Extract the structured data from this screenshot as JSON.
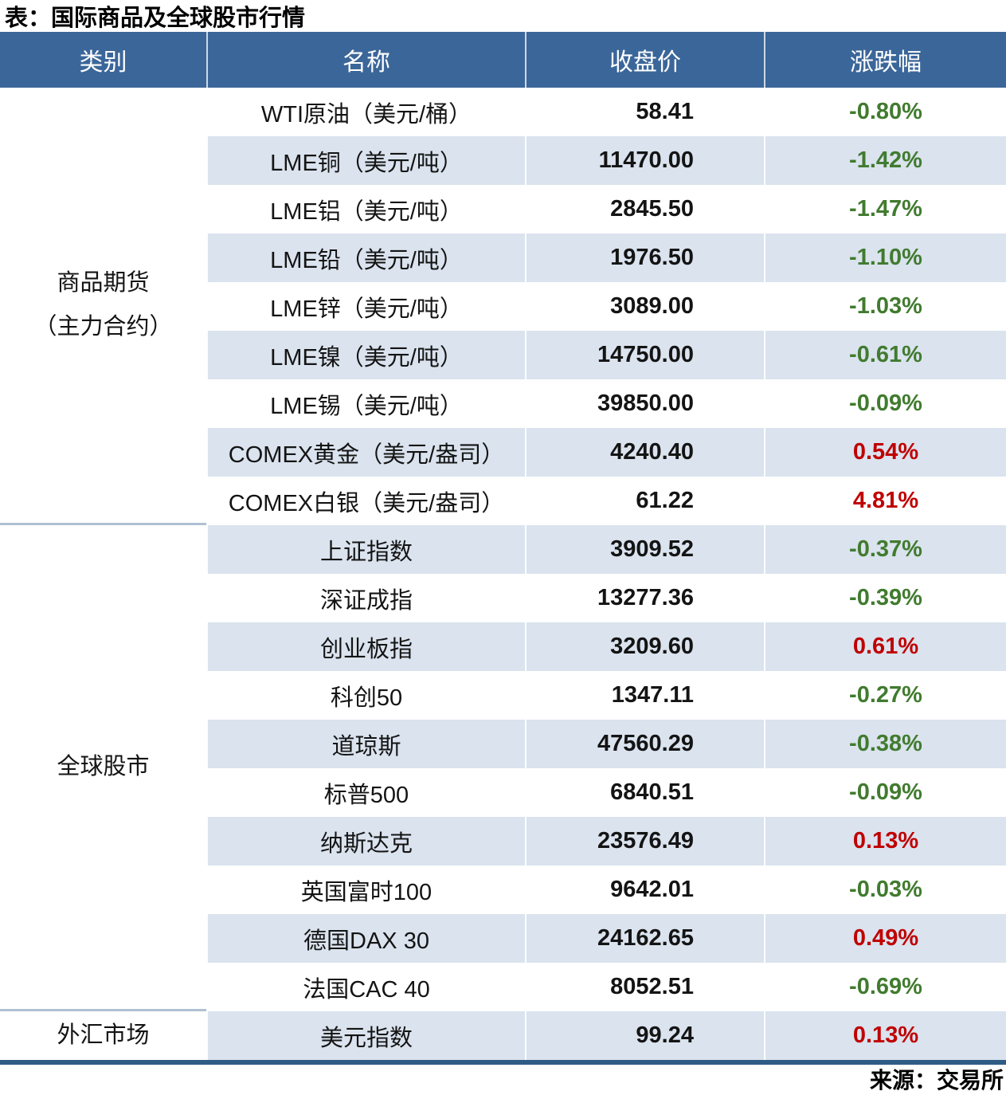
{
  "title": "表：国际商品及全球股市行情",
  "source": "来源：交易所",
  "colors": {
    "header_bg": "#3B6699",
    "stripe_row_bg": "#DAE3EE",
    "white_row_bg": "#FFFFFF",
    "gain_red": "#C00000",
    "loss_green": "#417B2F",
    "bottom_border": "#2E5C85",
    "section_divider": "#AFC0D2"
  },
  "table": {
    "headers": [
      "类别",
      "名称",
      "收盘价",
      "涨跌幅"
    ],
    "categories": [
      {
        "label": "商品期货\n（主力合约）",
        "row_count": 9
      },
      {
        "label": "全球股市",
        "row_count": 10
      },
      {
        "label": "外汇市场",
        "row_count": 1
      }
    ],
    "rows": [
      {
        "name": "WTI原油（美元/桶）",
        "close": "58.41",
        "change": "-0.80%",
        "direction": "down"
      },
      {
        "name": "LME铜（美元/吨）",
        "close": "11470.00",
        "change": "-1.42%",
        "direction": "down"
      },
      {
        "name": "LME铝（美元/吨）",
        "close": "2845.50",
        "change": "-1.47%",
        "direction": "down"
      },
      {
        "name": "LME铅（美元/吨）",
        "close": "1976.50",
        "change": "-1.10%",
        "direction": "down"
      },
      {
        "name": "LME锌（美元/吨）",
        "close": "3089.00",
        "change": "-1.03%",
        "direction": "down"
      },
      {
        "name": "LME镍（美元/吨）",
        "close": "14750.00",
        "change": "-0.61%",
        "direction": "down"
      },
      {
        "name": "LME锡（美元/吨）",
        "close": "39850.00",
        "change": "-0.09%",
        "direction": "down"
      },
      {
        "name": "COMEX黄金（美元/盎司）",
        "close": "4240.40",
        "change": "0.54%",
        "direction": "up"
      },
      {
        "name": "COMEX白银（美元/盎司）",
        "close": "61.22",
        "change": "4.81%",
        "direction": "up"
      },
      {
        "name": "上证指数",
        "close": "3909.52",
        "change": "-0.37%",
        "direction": "down"
      },
      {
        "name": "深证成指",
        "close": "13277.36",
        "change": "-0.39%",
        "direction": "down"
      },
      {
        "name": "创业板指",
        "close": "3209.60",
        "change": "0.61%",
        "direction": "up"
      },
      {
        "name": "科创50",
        "close": "1347.11",
        "change": "-0.27%",
        "direction": "down"
      },
      {
        "name": "道琼斯",
        "close": "47560.29",
        "change": "-0.38%",
        "direction": "down"
      },
      {
        "name": "标普500",
        "close": "6840.51",
        "change": "-0.09%",
        "direction": "down"
      },
      {
        "name": "纳斯达克",
        "close": "23576.49",
        "change": "0.13%",
        "direction": "up"
      },
      {
        "name": "英国富时100",
        "close": "9642.01",
        "change": "-0.03%",
        "direction": "down"
      },
      {
        "name": "德国DAX 30",
        "close": "24162.65",
        "change": "0.49%",
        "direction": "up"
      },
      {
        "name": "法国CAC 40",
        "close": "8052.51",
        "change": "-0.69%",
        "direction": "down"
      },
      {
        "name": "美元指数",
        "close": "99.24",
        "change": "0.13%",
        "direction": "up"
      }
    ]
  }
}
